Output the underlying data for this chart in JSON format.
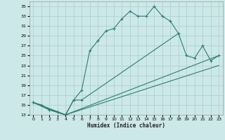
{
  "xlabel": "Humidex (Indice chaleur)",
  "bg_color": "#cce8e8",
  "line_color": "#2d7d75",
  "grid_color": "#aacccc",
  "xlim": [
    -0.5,
    23.5
  ],
  "ylim": [
    13,
    36
  ],
  "xticks": [
    0,
    1,
    2,
    3,
    4,
    5,
    6,
    7,
    8,
    9,
    10,
    11,
    12,
    13,
    14,
    15,
    16,
    17,
    18,
    19,
    20,
    21,
    22,
    23
  ],
  "yticks": [
    13,
    15,
    17,
    19,
    21,
    23,
    25,
    27,
    29,
    31,
    33,
    35
  ],
  "lines": [
    {
      "x": [
        0,
        1,
        2,
        3,
        4,
        5,
        6,
        7,
        8,
        9,
        10,
        11,
        12,
        13,
        14,
        15,
        16,
        17,
        18
      ],
      "y": [
        15.5,
        15,
        14,
        13.5,
        13,
        16,
        18,
        26,
        28,
        30,
        30.5,
        32.5,
        34,
        33,
        33,
        35,
        33,
        32,
        29.5
      ],
      "marker": true
    },
    {
      "x": [
        0,
        2,
        3,
        4,
        5,
        6,
        18,
        19,
        20,
        21,
        22,
        23
      ],
      "y": [
        15.5,
        14,
        13.5,
        13,
        16,
        16,
        29.5,
        25,
        24.5,
        27,
        24,
        25
      ],
      "marker": true
    },
    {
      "x": [
        0,
        4,
        23
      ],
      "y": [
        15.5,
        13,
        25
      ],
      "marker": false
    },
    {
      "x": [
        0,
        4,
        23
      ],
      "y": [
        15.5,
        13,
        23
      ],
      "marker": false
    }
  ]
}
